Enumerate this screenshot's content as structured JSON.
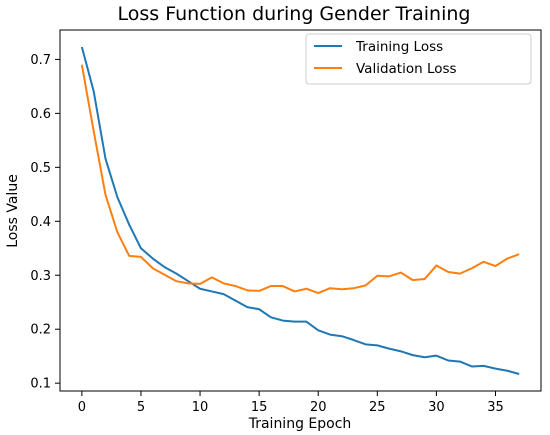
{
  "chart_data": {
    "type": "line",
    "title": "Loss Function during Gender Training",
    "xlabel": "Training Epoch",
    "ylabel": "Loss Value",
    "xlim": [
      -1.85,
      38.85
    ],
    "ylim": [
      0.0855,
      0.7545
    ],
    "xticks": [
      0,
      5,
      10,
      15,
      20,
      25,
      30,
      35
    ],
    "yticks": [
      0.1,
      0.2,
      0.3,
      0.4,
      0.5,
      0.6,
      0.7
    ],
    "xtick_labels": [
      "0",
      "5",
      "10",
      "15",
      "20",
      "25",
      "30",
      "35"
    ],
    "ytick_labels": [
      "0.1",
      "0.2",
      "0.3",
      "0.4",
      "0.5",
      "0.6",
      "0.7"
    ],
    "grid": false,
    "legend_position": "top-right",
    "x": [
      0,
      1,
      2,
      3,
      4,
      5,
      6,
      7,
      8,
      9,
      10,
      11,
      12,
      13,
      14,
      15,
      16,
      17,
      18,
      19,
      20,
      21,
      22,
      23,
      24,
      25,
      26,
      27,
      28,
      29,
      30,
      31,
      32,
      33,
      34,
      35,
      36,
      37
    ],
    "series": [
      {
        "name": "Training Loss",
        "color": "#1f77b4",
        "values": [
          0.723,
          0.641,
          0.516,
          0.445,
          0.394,
          0.35,
          0.331,
          0.315,
          0.303,
          0.289,
          0.275,
          0.27,
          0.265,
          0.253,
          0.241,
          0.237,
          0.222,
          0.216,
          0.214,
          0.214,
          0.198,
          0.19,
          0.187,
          0.18,
          0.172,
          0.17,
          0.164,
          0.159,
          0.152,
          0.148,
          0.151,
          0.142,
          0.14,
          0.131,
          0.132,
          0.127,
          0.123,
          0.117
        ]
      },
      {
        "name": "Validation Loss",
        "color": "#ff7f0e",
        "values": [
          0.69,
          0.567,
          0.449,
          0.38,
          0.336,
          0.334,
          0.313,
          0.301,
          0.289,
          0.285,
          0.284,
          0.296,
          0.285,
          0.28,
          0.272,
          0.271,
          0.28,
          0.28,
          0.27,
          0.275,
          0.267,
          0.276,
          0.274,
          0.276,
          0.281,
          0.299,
          0.298,
          0.305,
          0.291,
          0.293,
          0.318,
          0.306,
          0.303,
          0.313,
          0.325,
          0.317,
          0.331,
          0.339
        ]
      }
    ]
  }
}
